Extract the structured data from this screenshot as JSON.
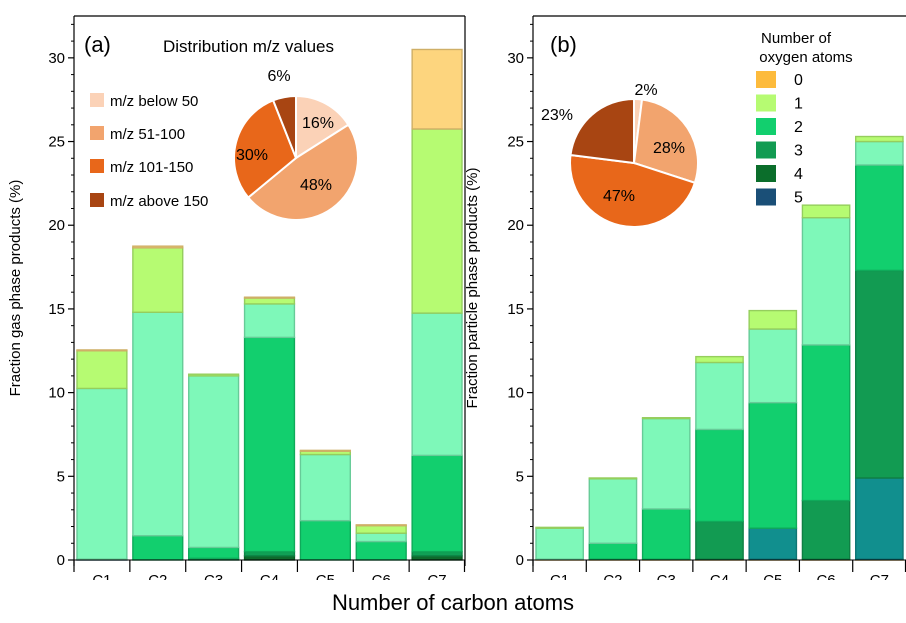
{
  "figure": {
    "shared_xlabel": "Number of carbon atoms"
  },
  "chart_data": [
    {
      "type": "bar",
      "stacked": true,
      "panel_label": "(a)",
      "ylabel": "Fraction gas phase products (%)",
      "ylim": [
        0,
        32.5
      ],
      "yticks": [
        0,
        5,
        10,
        15,
        20,
        25,
        30
      ],
      "categories": [
        "C1",
        "C2",
        "C3",
        "C4",
        "C5",
        "C6",
        "C7"
      ],
      "series": [
        {
          "key": "o5",
          "color": "#19657d",
          "values": [
            0.05,
            0,
            0,
            0,
            0,
            0,
            0
          ]
        },
        {
          "key": "o4",
          "color": "#0e6b2c",
          "values": [
            0,
            0,
            0,
            0.25,
            0,
            0,
            0.25
          ]
        },
        {
          "key": "o3",
          "color": "#10a055",
          "values": [
            0,
            0,
            0.1,
            0.25,
            0,
            0,
            0.25
          ]
        },
        {
          "key": "o2",
          "color": "#12cf6e",
          "values": [
            0,
            1.45,
            0.65,
            12.8,
            2.35,
            1.1,
            5.75
          ]
        },
        {
          "key": "o1b",
          "color": "#7ef8b9",
          "values": [
            10.2,
            13.35,
            10.25,
            2.0,
            3.95,
            0.5,
            8.5
          ]
        },
        {
          "key": "o1",
          "color": "#b6fb72",
          "values": [
            2.25,
            3.85,
            0.1,
            0.35,
            0.2,
            0.45,
            11.0
          ]
        },
        {
          "key": "o0",
          "color": "#fdd57e",
          "values": [
            0.05,
            0.1,
            0,
            0.05,
            0.05,
            0.05,
            4.75
          ]
        }
      ],
      "pie": {
        "title": "Distribution  m/z values",
        "slices": [
          {
            "label": "m/z below 50",
            "value": 16,
            "text": "16%",
            "color": "#fbd2b7"
          },
          {
            "label": "m/z 51-100",
            "value": 48,
            "text": "48%",
            "color": "#f2a46e"
          },
          {
            "label": "m/z 101-150",
            "value": 30,
            "text": "30%",
            "color": "#e8671a"
          },
          {
            "label": "m/z  above 150",
            "value": 6,
            "text": "6%",
            "color": "#a84512"
          }
        ]
      }
    },
    {
      "type": "bar",
      "stacked": true,
      "panel_label": "(b)",
      "ylabel": "Fraction particle phase products (%)",
      "ylim": [
        0,
        32.5
      ],
      "yticks": [
        0,
        5,
        10,
        15,
        20,
        25,
        30
      ],
      "categories": [
        "C1",
        "C2",
        "C3",
        "C4",
        "C5",
        "C6",
        "C7"
      ],
      "series": [
        {
          "key": "0",
          "name": "0",
          "color": "#fdbb3c",
          "values": [
            0.05,
            0.05,
            0.05,
            0.05,
            0.05,
            0.05,
            0.05
          ]
        },
        {
          "key": "5",
          "name": "5",
          "color": "#118f8e",
          "values": [
            0,
            0,
            0,
            0,
            1.85,
            0,
            4.85
          ]
        },
        {
          "key": "4",
          "name": "4",
          "color": "#0b6e2b",
          "values": [
            0,
            0,
            0,
            0,
            0,
            0,
            0
          ]
        },
        {
          "key": "3",
          "name": "3",
          "color": "#129b52",
          "values": [
            0,
            0,
            0,
            2.25,
            0,
            3.5,
            12.4
          ]
        },
        {
          "key": "2",
          "name": "2",
          "color": "#12cf6e",
          "values": [
            0,
            0.95,
            3.0,
            5.5,
            7.5,
            9.3,
            6.3
          ]
        },
        {
          "key": "1b",
          "color": "#7ef8b9",
          "values": [
            1.85,
            3.85,
            5.4,
            4.0,
            4.4,
            7.6,
            1.4
          ]
        },
        {
          "key": "1",
          "name": "1",
          "color": "#b6fb72",
          "values": [
            0.05,
            0.05,
            0.05,
            0.35,
            1.1,
            0.75,
            0.3
          ]
        }
      ],
      "legend": {
        "title_line1": "Number of",
        "title_line2": "oxygen atoms",
        "items": [
          {
            "label": "0",
            "color": "#fdbb3c"
          },
          {
            "label": "1",
            "color": "#b6fb72"
          },
          {
            "label": "2",
            "color": "#12cf6e"
          },
          {
            "label": "3",
            "color": "#129b52"
          },
          {
            "label": "4",
            "color": "#0b6e2b"
          },
          {
            "label": "5",
            "color": "#1a4f77"
          }
        ]
      },
      "pie": {
        "slices": [
          {
            "value": 2,
            "text": "2%",
            "color": "#fbd2b7"
          },
          {
            "value": 28,
            "text": "28%",
            "color": "#f2a46e"
          },
          {
            "value": 47,
            "text": "47%",
            "color": "#e8671a"
          },
          {
            "value": 23,
            "text": "23%",
            "color": "#a84512"
          }
        ]
      }
    }
  ]
}
